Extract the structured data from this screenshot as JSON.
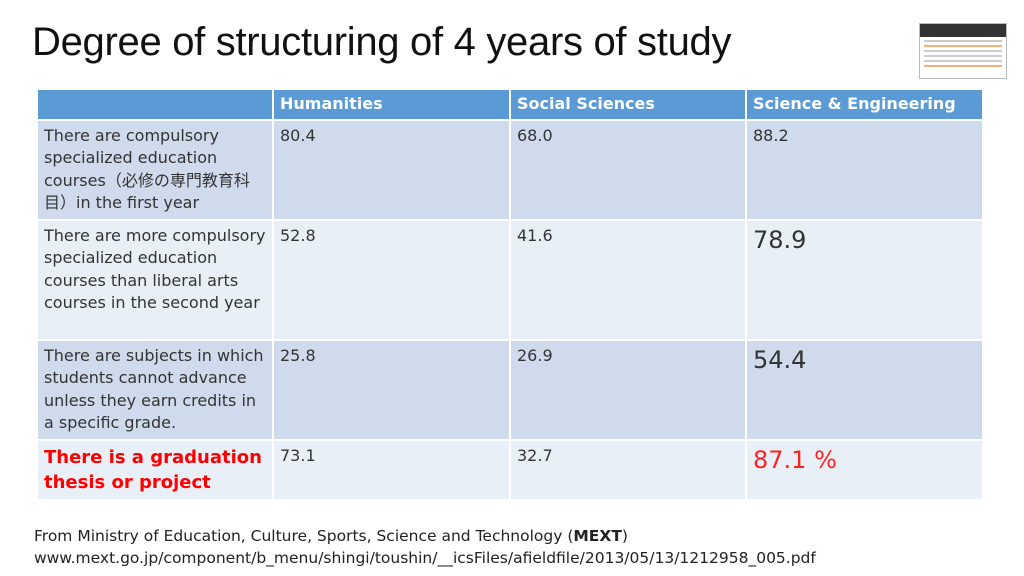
{
  "title": "Degree of structuring of 4 years of study",
  "table": {
    "headers": [
      "",
      "Humanities",
      "Social Sciences",
      "Science & Engineering"
    ],
    "rows": [
      {
        "label": "There are compulsory specialized education courses（必修の専門教育科目）in the first year",
        "values": [
          "80.4",
          "68.0",
          "88.2"
        ]
      },
      {
        "label": "There are more compulsory specialized education courses than liberal arts courses in the second year",
        "values": [
          "52.8",
          "41.6",
          "78.9"
        ]
      },
      {
        "label": "There are subjects in which students cannot advance unless they earn credits in a specific grade.",
        "values": [
          "25.8",
          "26.9",
          "54.4"
        ]
      },
      {
        "label": "There is a graduation thesis or project",
        "values": [
          "73.1",
          "32.7",
          "87.1 %"
        ]
      }
    ]
  },
  "footer": {
    "source_prefix": "From Ministry of Education, Culture, Sports, Science and Technology (",
    "source_bold": "MEXT",
    "source_suffix": ")",
    "url": "www.mext.go.jp/component/b_menu/shingi/toushin/__icsFiles/afieldfile/2013/05/13/1212958_005.pdf"
  },
  "colors": {
    "header": "#5b9bd5",
    "row_dark": "#cfdbec",
    "row_light": "#e9eff7",
    "highlight": "#ff2222"
  }
}
